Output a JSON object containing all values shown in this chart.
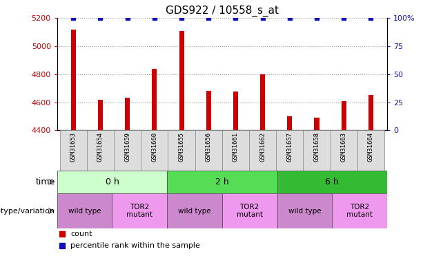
{
  "title": "GDS922 / 10558_s_at",
  "samples": [
    "GSM31653",
    "GSM31654",
    "GSM31659",
    "GSM31660",
    "GSM31655",
    "GSM31656",
    "GSM31661",
    "GSM31662",
    "GSM31657",
    "GSM31658",
    "GSM31663",
    "GSM31664"
  ],
  "counts": [
    5120,
    4620,
    4630,
    4840,
    5110,
    4680,
    4675,
    4800,
    4500,
    4490,
    4610,
    4650
  ],
  "percentiles": [
    100,
    100,
    100,
    100,
    100,
    100,
    100,
    100,
    100,
    100,
    100,
    100
  ],
  "ylim_left": [
    4400,
    5200
  ],
  "ylim_right": [
    0,
    100
  ],
  "yticks_left": [
    4400,
    4600,
    4800,
    5000,
    5200
  ],
  "yticks_right": [
    0,
    25,
    50,
    75,
    100
  ],
  "ytick_labels_right": [
    "0",
    "25",
    "50",
    "75",
    "100%"
  ],
  "bar_color": "#cc0000",
  "percentile_color": "#1111bb",
  "grid_color": "#999999",
  "time_groups": [
    {
      "label": "0 h",
      "start": 0,
      "end": 4,
      "color": "#ccffcc"
    },
    {
      "label": "2 h",
      "start": 4,
      "end": 8,
      "color": "#55dd55"
    },
    {
      "label": "6 h",
      "start": 8,
      "end": 12,
      "color": "#33bb33"
    }
  ],
  "genotype_groups": [
    {
      "label": "wild type",
      "start": 0,
      "end": 2,
      "color": "#cc88cc"
    },
    {
      "label": "TOR2\nmutant",
      "start": 2,
      "end": 4,
      "color": "#ee99ee"
    },
    {
      "label": "wild type",
      "start": 4,
      "end": 6,
      "color": "#cc88cc"
    },
    {
      "label": "TOR2\nmutant",
      "start": 6,
      "end": 8,
      "color": "#ee99ee"
    },
    {
      "label": "wild type",
      "start": 8,
      "end": 10,
      "color": "#cc88cc"
    },
    {
      "label": "TOR2\nmutant",
      "start": 10,
      "end": 12,
      "color": "#ee99ee"
    }
  ],
  "xlabel_time": "time",
  "xlabel_genotype": "genotype/variation",
  "legend_count_color": "#cc0000",
  "legend_percentile_color": "#1111bb",
  "tick_label_color_left": "#cc0000",
  "tick_label_color_right": "#1111bb",
  "title_fontsize": 11,
  "bar_width": 0.18,
  "sample_box_color": "#dddddd",
  "xlabel_color": "#333333"
}
